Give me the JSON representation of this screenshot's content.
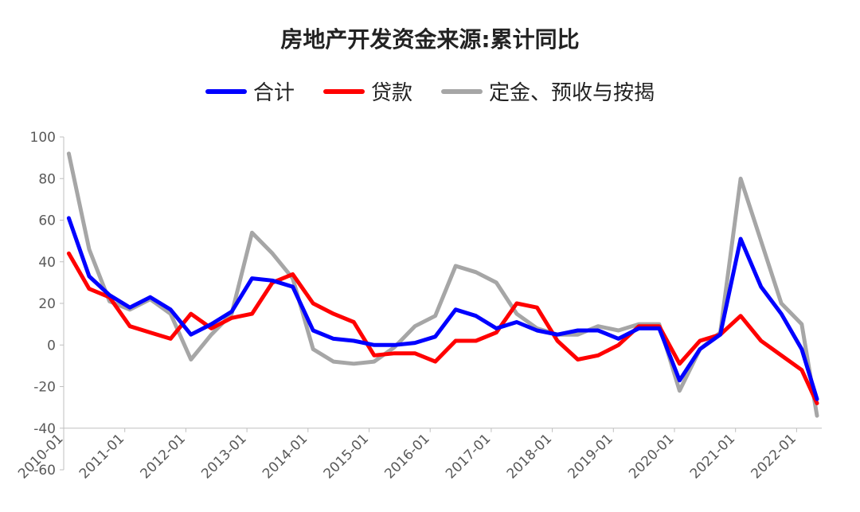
{
  "chart_data": {
    "type": "line",
    "title": "房地产开发资金来源:累计同比",
    "xlabel": "",
    "ylabel": "",
    "ylim": [
      -60,
      100
    ],
    "yticks": [
      100,
      80,
      60,
      40,
      20,
      0,
      -20,
      -40,
      -60
    ],
    "xticks": [
      "2010-01",
      "2011-01",
      "2012-01",
      "2013-01",
      "2014-01",
      "2015-01",
      "2016-01",
      "2017-01",
      "2018-01",
      "2019-01",
      "2020-01",
      "2021-01",
      "2022-01"
    ],
    "x": [
      "2010-02",
      "2010-06",
      "2010-10",
      "2011-02",
      "2011-06",
      "2011-10",
      "2012-02",
      "2012-06",
      "2012-10",
      "2013-02",
      "2013-06",
      "2013-10",
      "2014-02",
      "2014-06",
      "2014-10",
      "2015-02",
      "2015-06",
      "2015-10",
      "2016-02",
      "2016-06",
      "2016-10",
      "2017-02",
      "2017-06",
      "2017-10",
      "2018-02",
      "2018-06",
      "2018-10",
      "2019-02",
      "2019-06",
      "2019-10",
      "2020-02",
      "2020-06",
      "2020-10",
      "2021-02",
      "2021-06",
      "2021-10",
      "2022-02",
      "2022-05"
    ],
    "legend_position": "top",
    "grid": false,
    "series": [
      {
        "name": "合计",
        "color": "#0000ff",
        "values": [
          61,
          33,
          24,
          18,
          23,
          17,
          5,
          10,
          16,
          32,
          31,
          28,
          7,
          3,
          2,
          0,
          0,
          1,
          4,
          17,
          14,
          8,
          11,
          7,
          5,
          7,
          7,
          3,
          8,
          8,
          -17,
          -2,
          5,
          51,
          28,
          15,
          -2,
          -26
        ]
      },
      {
        "name": "贷款",
        "color": "#ff0000",
        "values": [
          44,
          27,
          23,
          9,
          6,
          3,
          15,
          8,
          13,
          15,
          30,
          34,
          20,
          15,
          11,
          -5,
          -4,
          -4,
          -8,
          2,
          2,
          6,
          20,
          18,
          2,
          -7,
          -5,
          0,
          9,
          9,
          -9,
          2,
          5,
          14,
          2,
          -5,
          -12,
          -28
        ]
      },
      {
        "name": "定金、预收与按揭",
        "color": "#a6a6a6",
        "values": [
          92,
          46,
          21,
          17,
          22,
          15,
          -7,
          5,
          15,
          54,
          44,
          32,
          -2,
          -8,
          -9,
          -8,
          -1,
          9,
          14,
          38,
          35,
          30,
          15,
          8,
          5,
          5,
          9,
          7,
          10,
          10,
          -22,
          -2,
          6,
          80,
          50,
          20,
          10,
          -34
        ]
      }
    ]
  }
}
